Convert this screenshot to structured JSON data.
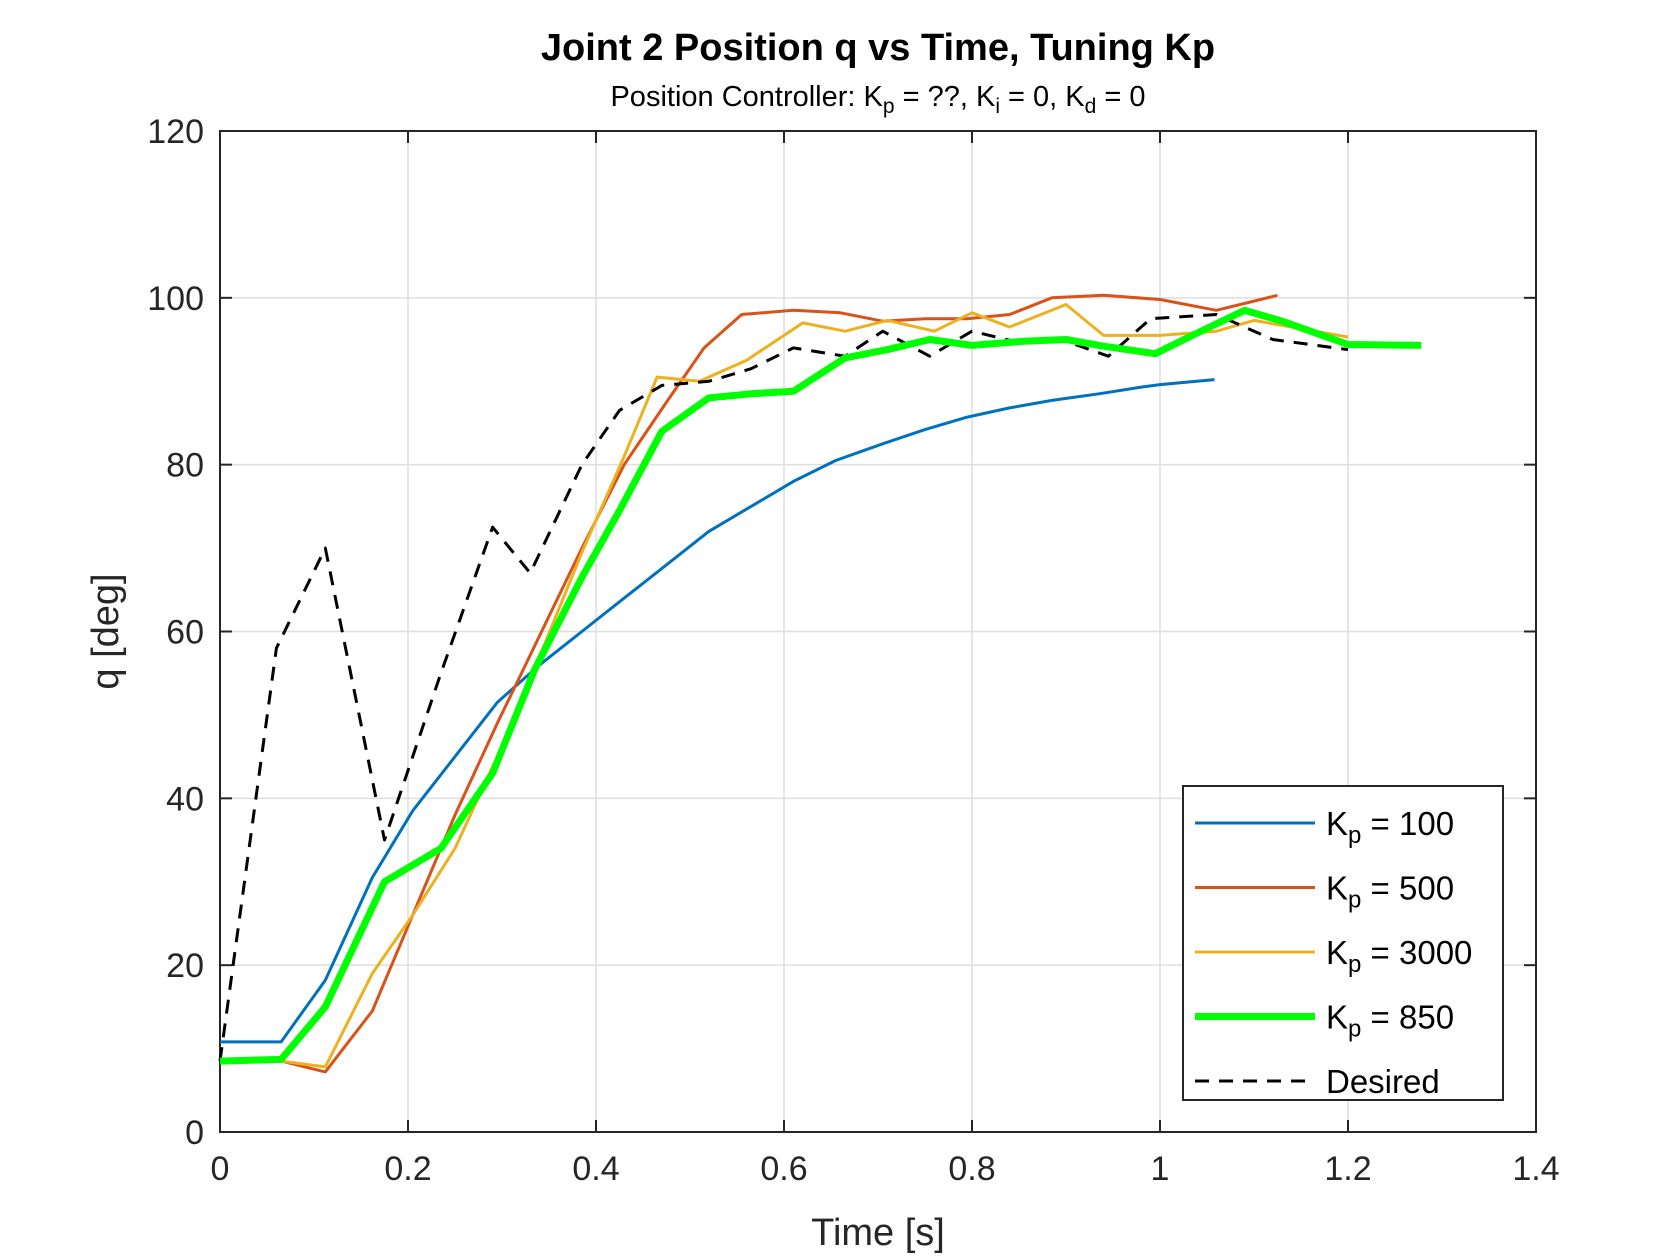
{
  "chart_data": {
    "type": "line",
    "title": "Joint 2 Position q vs Time, Tuning Kp",
    "subtitle": {
      "prefix": "Position Controller: K",
      "kp_sub": "p",
      "kp_value": " = ??, K",
      "ki_sub": "i",
      "ki_value": " = 0, K",
      "kd_sub": "d",
      "kd_value": " = 0"
    },
    "xlabel": "Time [s]",
    "ylabel": "q [deg]",
    "xlim": [
      0,
      1.4
    ],
    "ylim": [
      0,
      120
    ],
    "xticks": [
      0,
      0.2,
      0.4,
      0.6,
      0.8,
      1,
      1.2,
      1.4
    ],
    "xtick_labels": [
      "0",
      "0.2",
      "0.4",
      "0.6",
      "0.8",
      "1",
      "1.2",
      "1.4"
    ],
    "yticks": [
      0,
      20,
      40,
      60,
      80,
      100,
      120
    ],
    "ytick_labels": [
      "0",
      "20",
      "40",
      "60",
      "80",
      "100",
      "120"
    ],
    "grid": true,
    "legend_position": "bottom-right",
    "series": [
      {
        "name": "Kp = 100",
        "legend": {
          "k": "K",
          "sub": "p",
          "rest": " = 100"
        },
        "color": "#0072BD",
        "width": 3,
        "dash": "",
        "x": [
          0,
          0.065,
          0.112,
          0.162,
          0.205,
          0.25,
          0.295,
          0.34,
          0.385,
          0.43,
          0.475,
          0.52,
          0.565,
          0.61,
          0.655,
          0.705,
          0.75,
          0.795,
          0.84,
          0.885,
          0.935,
          0.98,
          1.0,
          1.058
        ],
        "y": [
          10.8,
          10.8,
          18.2,
          30.5,
          38.5,
          45.0,
          51.5,
          56.0,
          60.0,
          64.0,
          68.0,
          72.0,
          75.0,
          78.0,
          80.5,
          82.5,
          84.2,
          85.7,
          86.8,
          87.7,
          88.5,
          89.3,
          89.6,
          90.2
        ]
      },
      {
        "name": "Kp = 500",
        "legend": {
          "k": "K",
          "sub": "p",
          "rest": " = 500"
        },
        "color": "#D95319",
        "width": 3,
        "dash": "",
        "x": [
          0,
          0.065,
          0.112,
          0.162,
          0.205,
          0.25,
          0.295,
          0.34,
          0.385,
          0.43,
          0.475,
          0.515,
          0.555,
          0.61,
          0.66,
          0.705,
          0.75,
          0.795,
          0.84,
          0.885,
          0.94,
          1.0,
          1.06,
          1.125
        ],
        "y": [
          8.5,
          8.5,
          7.2,
          14.5,
          26.0,
          38.0,
          49.0,
          59.5,
          70.0,
          80.0,
          87.5,
          94.0,
          98.0,
          98.5,
          98.2,
          97.2,
          97.5,
          97.5,
          98.0,
          100.0,
          100.3,
          99.8,
          98.5,
          100.3
        ]
      },
      {
        "name": "Kp = 3000",
        "legend": {
          "k": "K",
          "sub": "p",
          "rest": " = 3000"
        },
        "color": "#EDB120",
        "width": 3,
        "dash": "",
        "x": [
          0,
          0.065,
          0.112,
          0.162,
          0.205,
          0.25,
          0.295,
          0.34,
          0.385,
          0.43,
          0.465,
          0.51,
          0.56,
          0.62,
          0.665,
          0.71,
          0.76,
          0.8,
          0.84,
          0.9,
          0.94,
          1.0,
          1.06,
          1.1,
          1.2
        ],
        "y": [
          8.5,
          8.5,
          7.8,
          19.0,
          26.0,
          34.0,
          45.0,
          57.0,
          69.5,
          81.0,
          90.5,
          90.0,
          92.5,
          97.0,
          96.0,
          97.3,
          96.0,
          98.2,
          96.5,
          99.2,
          95.5,
          95.5,
          96.0,
          97.3,
          95.3
        ]
      },
      {
        "name": "Kp = 850",
        "legend": {
          "k": "K",
          "sub": "p",
          "rest": " = 850"
        },
        "color": "#00FF00",
        "width": 7,
        "dash": "",
        "x": [
          0,
          0.065,
          0.112,
          0.175,
          0.235,
          0.29,
          0.335,
          0.385,
          0.425,
          0.47,
          0.52,
          0.565,
          0.61,
          0.665,
          0.71,
          0.755,
          0.8,
          0.855,
          0.9,
          0.94,
          0.995,
          1.04,
          1.09,
          1.13,
          1.2,
          1.278
        ],
        "y": [
          8.5,
          8.7,
          15.0,
          30.0,
          34.0,
          43.0,
          55.5,
          66.5,
          74.5,
          84.0,
          88.0,
          88.5,
          88.8,
          92.8,
          93.8,
          95.0,
          94.3,
          94.8,
          95.0,
          94.2,
          93.3,
          95.8,
          98.5,
          97.2,
          94.4,
          94.3
        ]
      },
      {
        "name": "Desired",
        "legend": {
          "k": "Desired",
          "sub": "",
          "rest": ""
        },
        "color": "#000000",
        "width": 3,
        "dash": "14 10",
        "x": [
          0,
          0.06,
          0.112,
          0.175,
          0.235,
          0.29,
          0.33,
          0.385,
          0.425,
          0.47,
          0.52,
          0.565,
          0.61,
          0.665,
          0.705,
          0.755,
          0.8,
          0.855,
          0.895,
          0.945,
          0.99,
          1.06,
          1.12,
          1.2
        ],
        "y": [
          8.5,
          58.0,
          70.0,
          35.0,
          55.0,
          72.5,
          67.0,
          80.0,
          86.5,
          89.5,
          90.0,
          91.5,
          94.0,
          93.0,
          96.0,
          93.0,
          96.0,
          94.5,
          95.0,
          93.0,
          97.5,
          98.0,
          95.0,
          93.8
        ]
      }
    ]
  }
}
